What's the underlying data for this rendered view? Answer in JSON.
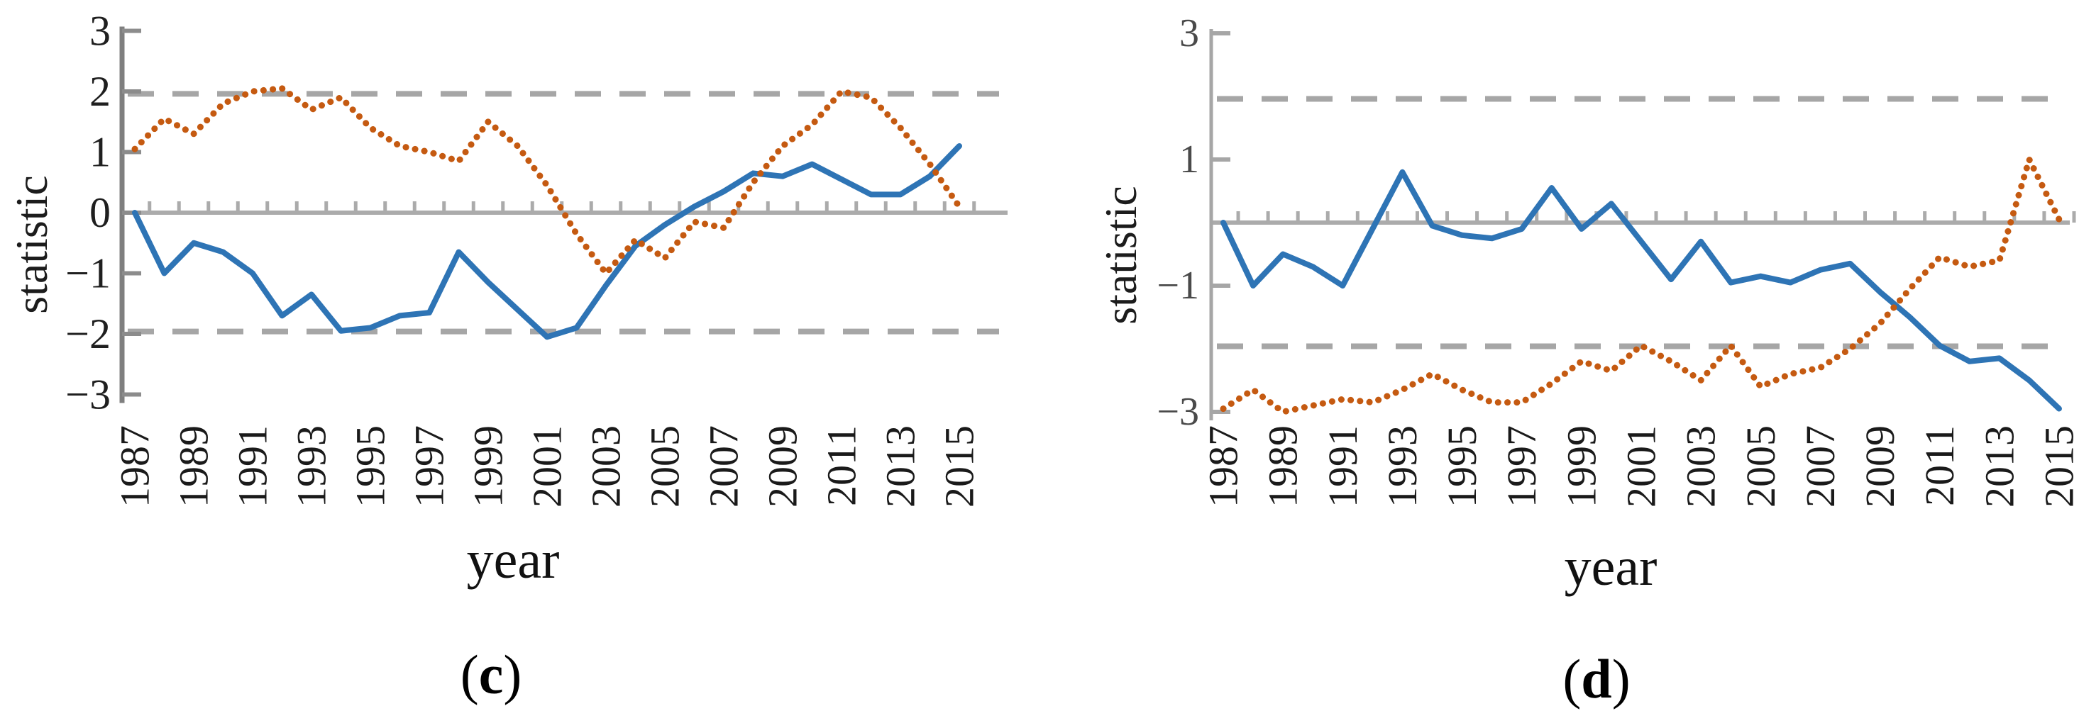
{
  "figure": {
    "panels": [
      {
        "caption_open": "(",
        "caption_letter": "c",
        "caption_close": ")",
        "xlabel": "year",
        "ylabel": "statistic"
      },
      {
        "caption_open": "(",
        "caption_letter": "d",
        "caption_close": ")",
        "xlabel": "year",
        "ylabel": "statistic"
      }
    ]
  },
  "chart_data": [
    {
      "type": "line",
      "panel": "c",
      "title": "",
      "xlabel": "year",
      "ylabel": "statistic",
      "x": [
        1987,
        1988,
        1989,
        1990,
        1991,
        1992,
        1993,
        1994,
        1995,
        1996,
        1997,
        1998,
        1999,
        2000,
        2001,
        2002,
        2003,
        2004,
        2005,
        2006,
        2007,
        2008,
        2009,
        2010,
        2011,
        2012,
        2013,
        2014,
        2015
      ],
      "x_tick_labels": [
        "1987",
        "1989",
        "1991",
        "1993",
        "1995",
        "1997",
        "1999",
        "2001",
        "2003",
        "2005",
        "2007",
        "2009",
        "2011",
        "2013",
        "2015"
      ],
      "ylim": [
        -3,
        3
      ],
      "yticks": [
        3,
        2,
        1,
        0,
        -1,
        -2,
        -3
      ],
      "ytick_labels": [
        "3",
        "2",
        "1",
        "0",
        "−1",
        "−2",
        "−3"
      ],
      "grid": "off",
      "legend": "none",
      "reference_lines": {
        "zero": 0,
        "significance": [
          1.96,
          -1.96
        ],
        "style": "dashed",
        "color": "#A6A6A6"
      },
      "series": [
        {
          "name": "statistic-solid",
          "color": "#2E74B5",
          "line_style": "solid",
          "values": [
            0.0,
            -1.0,
            -0.5,
            -0.65,
            -1.0,
            -1.7,
            -1.35,
            -1.95,
            -1.9,
            -1.7,
            -1.65,
            -0.65,
            -1.15,
            -1.6,
            -2.05,
            -1.9,
            -1.2,
            -0.55,
            -0.2,
            0.1,
            0.35,
            0.65,
            0.6,
            0.8,
            0.55,
            0.3,
            0.3,
            0.6,
            1.1
          ]
        },
        {
          "name": "statistic-dotted",
          "color": "#C55A11",
          "line_style": "dotted",
          "values": [
            1.05,
            1.55,
            1.3,
            1.8,
            2.0,
            2.05,
            1.7,
            1.9,
            1.4,
            1.1,
            1.0,
            0.85,
            1.5,
            1.1,
            0.45,
            -0.35,
            -1.0,
            -0.45,
            -0.75,
            -0.15,
            -0.25,
            0.5,
            1.1,
            1.45,
            2.0,
            1.9,
            1.4,
            0.8,
            0.1
          ]
        }
      ]
    },
    {
      "type": "line",
      "panel": "d",
      "title": "",
      "xlabel": "year",
      "ylabel": "statistic",
      "x": [
        1987,
        1988,
        1989,
        1990,
        1991,
        1992,
        1993,
        1994,
        1995,
        1996,
        1997,
        1998,
        1999,
        2000,
        2001,
        2002,
        2003,
        2004,
        2005,
        2006,
        2007,
        2008,
        2009,
        2010,
        2011,
        2012,
        2013,
        2014,
        2015
      ],
      "x_tick_labels": [
        "1987",
        "1989",
        "1991",
        "1993",
        "1995",
        "1997",
        "1999",
        "2001",
        "2003",
        "2005",
        "2007",
        "2009",
        "2011",
        "2013",
        "2015"
      ],
      "ylim": [
        -3,
        3
      ],
      "yticks": [
        3,
        1,
        -1,
        -3
      ],
      "ytick_labels": [
        "3",
        "1",
        "−1",
        "−3"
      ],
      "grid": "off",
      "legend": "none",
      "reference_lines": {
        "zero": 0,
        "significance": [
          1.96,
          -1.96
        ],
        "style": "dashed",
        "color": "#A6A6A6"
      },
      "series": [
        {
          "name": "statistic-solid",
          "color": "#2E74B5",
          "line_style": "solid",
          "values": [
            0.0,
            -1.0,
            -0.5,
            -0.7,
            -1.0,
            -0.1,
            0.8,
            -0.05,
            -0.2,
            -0.25,
            -0.1,
            0.55,
            -0.1,
            0.3,
            -0.3,
            -0.9,
            -0.3,
            -0.95,
            -0.85,
            -0.95,
            -0.75,
            -0.65,
            -1.1,
            -1.5,
            -1.95,
            -2.2,
            -2.15,
            -2.5,
            -2.95
          ]
        },
        {
          "name": "statistic-dotted",
          "color": "#C55A11",
          "line_style": "dotted",
          "values": [
            -2.95,
            -2.65,
            -3.0,
            -2.9,
            -2.8,
            -2.85,
            -2.65,
            -2.4,
            -2.65,
            -2.85,
            -2.85,
            -2.55,
            -2.2,
            -2.35,
            -1.95,
            -2.2,
            -2.5,
            -1.95,
            -2.6,
            -2.4,
            -2.3,
            -2.0,
            -1.6,
            -1.05,
            -0.55,
            -0.7,
            -0.6,
            1.0,
            0.05
          ]
        }
      ]
    }
  ]
}
